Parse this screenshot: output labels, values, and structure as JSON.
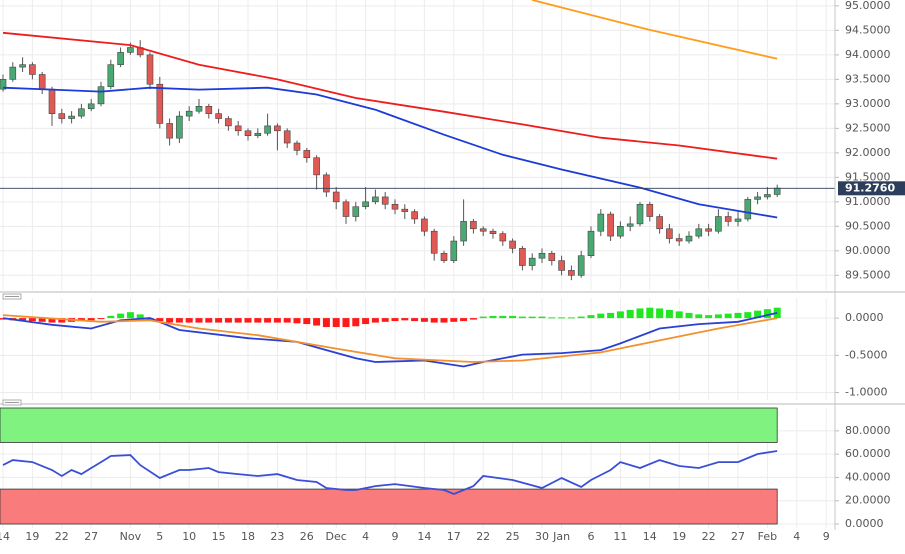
{
  "chart_data": [
    {
      "type": "candlestick",
      "open": [
        93.3,
        93.5,
        93.75,
        93.8,
        93.6,
        93.3,
        92.8,
        92.7,
        92.75,
        92.9,
        93.0,
        93.35,
        93.8,
        94.05,
        94.15,
        94.0,
        93.4,
        92.6,
        92.3,
        92.75,
        92.85,
        92.95,
        92.8,
        92.7,
        92.55,
        92.45,
        92.35,
        92.4,
        92.55,
        92.45,
        92.2,
        92.05,
        91.9,
        91.55,
        91.2,
        91.0,
        90.7,
        90.9,
        91.0,
        91.1,
        90.95,
        90.85,
        90.8,
        90.65,
        90.4,
        89.95,
        89.8,
        90.2,
        90.6,
        90.45,
        90.4,
        90.35,
        90.2,
        90.05,
        89.7,
        89.85,
        89.95,
        89.8,
        89.6,
        89.5,
        89.9,
        90.4,
        90.75,
        90.3,
        90.5,
        90.55,
        90.95,
        90.7,
        90.45,
        90.25,
        90.2,
        90.3,
        90.45,
        90.4,
        90.7,
        90.6,
        90.65,
        91.05,
        91.1,
        91.15
      ],
      "high": [
        93.6,
        93.85,
        93.95,
        93.85,
        93.65,
        93.35,
        92.9,
        92.85,
        93.0,
        93.1,
        93.45,
        93.9,
        94.15,
        94.25,
        94.3,
        94.05,
        93.55,
        92.7,
        92.85,
        92.95,
        93.1,
        93.0,
        92.9,
        92.75,
        92.65,
        92.5,
        92.5,
        92.8,
        92.6,
        92.5,
        92.25,
        92.1,
        91.95,
        91.6,
        91.3,
        91.05,
        91.0,
        91.3,
        91.25,
        91.2,
        91.05,
        90.95,
        90.85,
        90.7,
        90.45,
        90.0,
        90.3,
        91.05,
        90.65,
        90.5,
        90.45,
        90.4,
        90.25,
        90.1,
        89.95,
        90.05,
        90.0,
        89.9,
        89.7,
        90.0,
        90.5,
        90.85,
        90.8,
        90.6,
        90.7,
        91.0,
        91.0,
        90.75,
        90.55,
        90.35,
        90.4,
        90.55,
        90.55,
        90.85,
        90.8,
        90.8,
        91.1,
        91.2,
        91.3,
        91.35
      ],
      "low": [
        93.25,
        93.45,
        93.65,
        93.5,
        93.2,
        92.55,
        92.6,
        92.6,
        92.7,
        92.85,
        92.95,
        93.3,
        93.75,
        94.0,
        93.95,
        93.3,
        92.5,
        92.15,
        92.2,
        92.65,
        92.8,
        92.7,
        92.6,
        92.45,
        92.35,
        92.25,
        92.3,
        92.35,
        92.05,
        92.1,
        91.95,
        91.8,
        91.25,
        91.1,
        90.85,
        90.55,
        90.6,
        90.85,
        90.95,
        90.85,
        90.75,
        90.65,
        90.55,
        90.3,
        89.8,
        89.75,
        89.75,
        90.1,
        90.35,
        90.3,
        90.25,
        90.1,
        89.95,
        89.6,
        89.6,
        89.75,
        89.7,
        89.5,
        89.4,
        89.45,
        89.85,
        90.3,
        90.2,
        90.25,
        90.4,
        90.5,
        90.6,
        90.35,
        90.15,
        90.1,
        90.15,
        90.25,
        90.3,
        90.35,
        90.5,
        90.5,
        90.6,
        90.95,
        91.05,
        91.1
      ],
      "close": [
        93.5,
        93.75,
        93.8,
        93.6,
        93.3,
        92.8,
        92.7,
        92.75,
        92.9,
        93.0,
        93.35,
        93.8,
        94.05,
        94.15,
        94.0,
        93.4,
        92.6,
        92.3,
        92.75,
        92.85,
        92.95,
        92.8,
        92.7,
        92.55,
        92.45,
        92.35,
        92.4,
        92.55,
        92.45,
        92.2,
        92.05,
        91.9,
        91.55,
        91.2,
        91.0,
        90.7,
        90.9,
        91.0,
        91.1,
        90.95,
        90.85,
        90.8,
        90.65,
        90.4,
        89.95,
        89.8,
        90.2,
        90.6,
        90.45,
        90.4,
        90.35,
        90.2,
        90.05,
        89.7,
        89.85,
        89.95,
        89.8,
        89.6,
        89.5,
        89.9,
        90.4,
        90.75,
        90.3,
        90.5,
        90.55,
        90.95,
        90.7,
        90.45,
        90.25,
        90.2,
        90.3,
        90.45,
        90.4,
        90.7,
        90.6,
        90.65,
        91.05,
        91.1,
        91.15,
        91.28
      ],
      "up_color": "#4aa873",
      "down_color": "#e05a55",
      "overlays": [
        {
          "color": "#ee1c1c",
          "x": [
            0,
            13,
            20,
            28,
            36,
            45,
            53,
            61,
            69,
            79
          ],
          "values": [
            94.45,
            94.2,
            93.8,
            93.5,
            93.12,
            92.84,
            92.58,
            92.31,
            92.15,
            91.88
          ]
        },
        {
          "color": "#1c3bd8",
          "x": [
            0,
            5,
            10,
            15,
            20,
            27,
            32,
            38,
            45,
            51,
            57,
            65,
            71,
            79
          ],
          "values": [
            93.33,
            93.29,
            93.25,
            93.33,
            93.29,
            93.33,
            93.19,
            92.88,
            92.37,
            91.96,
            91.66,
            91.29,
            90.95,
            90.68
          ]
        },
        {
          "color": "#ff9d1a",
          "x": [
            54,
            66,
            79
          ],
          "values": [
            95.12,
            94.51,
            93.92
          ]
        }
      ],
      "price_line": {
        "value": 91.276,
        "label": "91.2760",
        "color": "#2c3e5c"
      },
      "ylim": [
        89.2,
        95.12
      ],
      "yticks": [
        {
          "value": 89.5,
          "label": "89.5000"
        },
        {
          "value": 90,
          "label": "90.0000"
        },
        {
          "value": 90.5,
          "label": "90.5000"
        },
        {
          "value": 91,
          "label": "91.0000"
        },
        {
          "value": 91.5,
          "label": "91.5000"
        },
        {
          "value": 92,
          "label": "92.0000"
        },
        {
          "value": 92.5,
          "label": "92.5000"
        },
        {
          "value": 93,
          "label": "93.0000"
        },
        {
          "value": 93.5,
          "label": "93.5000"
        },
        {
          "value": 94,
          "label": "94.0000"
        },
        {
          "value": 94.5,
          "label": "94.5000"
        },
        {
          "value": 95,
          "label": "95.0000"
        }
      ],
      "grid": true
    },
    {
      "type": "macd",
      "histogram": {
        "up_color": "#22e622",
        "down_color": "#ff1a1a",
        "values": [
          -0.02,
          -0.03,
          -0.03,
          -0.04,
          -0.05,
          -0.06,
          -0.06,
          -0.05,
          -0.04,
          -0.03,
          -0.01,
          0.03,
          0.06,
          0.08,
          0.05,
          -0.02,
          -0.04,
          -0.06,
          -0.06,
          -0.06,
          -0.06,
          -0.06,
          -0.06,
          -0.06,
          -0.06,
          -0.06,
          -0.06,
          -0.06,
          -0.06,
          -0.06,
          -0.07,
          -0.08,
          -0.1,
          -0.12,
          -0.12,
          -0.12,
          -0.11,
          -0.08,
          -0.06,
          -0.05,
          -0.04,
          -0.03,
          -0.04,
          -0.05,
          -0.06,
          -0.06,
          -0.05,
          -0.04,
          -0.02,
          0.02,
          0.03,
          0.03,
          0.03,
          0.02,
          0.02,
          0.02,
          0.01,
          0.01,
          0.01,
          0.02,
          0.04,
          0.06,
          0.07,
          0.09,
          0.11,
          0.13,
          0.14,
          0.13,
          0.11,
          0.09,
          0.07,
          0.05,
          0.04,
          0.05,
          0.06,
          0.07,
          0.08,
          0.1,
          0.12,
          0.14
        ]
      },
      "lines": [
        {
          "color": "#2a3fd6",
          "x": [
            0,
            5,
            9,
            12,
            15,
            18,
            25,
            30,
            33,
            36,
            38,
            43,
            47,
            49,
            53,
            57,
            61,
            63,
            67,
            71,
            75,
            79
          ],
          "values": [
            0.0,
            -0.09,
            -0.14,
            -0.03,
            0.0,
            -0.16,
            -0.27,
            -0.32,
            -0.43,
            -0.54,
            -0.59,
            -0.57,
            -0.65,
            -0.59,
            -0.49,
            -0.47,
            -0.43,
            -0.34,
            -0.14,
            -0.08,
            -0.05,
            0.07
          ]
        },
        {
          "color": "#f2912f",
          "x": [
            0,
            10,
            15,
            20,
            26,
            34,
            40,
            48,
            53,
            61,
            67,
            73,
            79
          ],
          "values": [
            0.04,
            -0.05,
            -0.03,
            -0.14,
            -0.23,
            -0.41,
            -0.54,
            -0.59,
            -0.57,
            -0.46,
            -0.3,
            -0.14,
            0.0
          ]
        }
      ],
      "ylim": [
        -1.1,
        0.27
      ],
      "yticks": [
        {
          "value": -1,
          "label": "-1.0000"
        },
        {
          "value": -0.5,
          "label": "-0.5000"
        },
        {
          "value": 0,
          "label": "0.0000"
        }
      ],
      "grid": true
    },
    {
      "type": "line",
      "categories": [
        "14",
        null,
        null,
        "19",
        null,
        null,
        "22",
        null,
        null,
        "27",
        null,
        null,
        null,
        "Nov",
        null,
        null,
        "5",
        null,
        null,
        "10",
        null,
        null,
        "15",
        null,
        null,
        "18",
        null,
        null,
        "23",
        null,
        null,
        "26",
        null,
        null,
        "Dec",
        null,
        null,
        "4",
        null,
        null,
        "9",
        null,
        null,
        "14",
        null,
        null,
        "17",
        null,
        null,
        "22",
        null,
        null,
        "25",
        null,
        null,
        "30",
        null,
        "Jan",
        null,
        null,
        "6",
        null,
        null,
        "11",
        null,
        null,
        "14",
        null,
        null,
        "19",
        null,
        null,
        "22",
        null,
        null,
        "27",
        null,
        null,
        "Feb",
        null,
        null,
        "4",
        null,
        null,
        "9",
        null
      ],
      "series": [
        {
          "color": "#3a4fd6",
          "x": [
            0,
            1,
            3,
            5,
            6,
            7,
            8,
            9,
            10,
            11,
            13,
            14,
            16,
            18,
            19,
            21,
            22,
            24,
            26,
            28,
            30,
            32,
            33,
            35,
            36,
            38,
            40,
            43,
            45,
            46,
            48,
            49,
            52,
            55,
            57,
            59,
            60,
            62,
            63,
            65,
            67,
            69,
            71,
            73,
            75,
            77,
            79
          ],
          "values": [
            50.6,
            54.9,
            53.2,
            46.4,
            41.2,
            46.4,
            42.9,
            48.1,
            53.2,
            58.4,
            59.2,
            50.6,
            39.5,
            46.4,
            46.4,
            48.1,
            44.6,
            42.9,
            41.2,
            42.9,
            37.8,
            36.1,
            30.9,
            29.2,
            29.2,
            32.6,
            34.3,
            30.9,
            29.2,
            25.8,
            32.6,
            41.2,
            37.8,
            30.9,
            39.5,
            31.8,
            37.8,
            46.4,
            53.2,
            48.1,
            54.9,
            49.8,
            48.1,
            53.2,
            53.2,
            60.1,
            62.7
          ]
        }
      ],
      "bands": [
        {
          "range": [
            70,
            100
          ],
          "color": "#7ff27f"
        },
        {
          "range": [
            0,
            30
          ],
          "color": "#fa7b7b"
        }
      ],
      "ylim": [
        -3.4,
        99.6
      ],
      "yticks": [
        {
          "value": 0,
          "label": "0.0000"
        },
        {
          "value": 20,
          "label": "20.0000"
        },
        {
          "value": 40,
          "label": "40.0000"
        },
        {
          "value": 60,
          "label": "60.0000"
        },
        {
          "value": 80,
          "label": "80.0000"
        }
      ],
      "grid": true
    }
  ]
}
